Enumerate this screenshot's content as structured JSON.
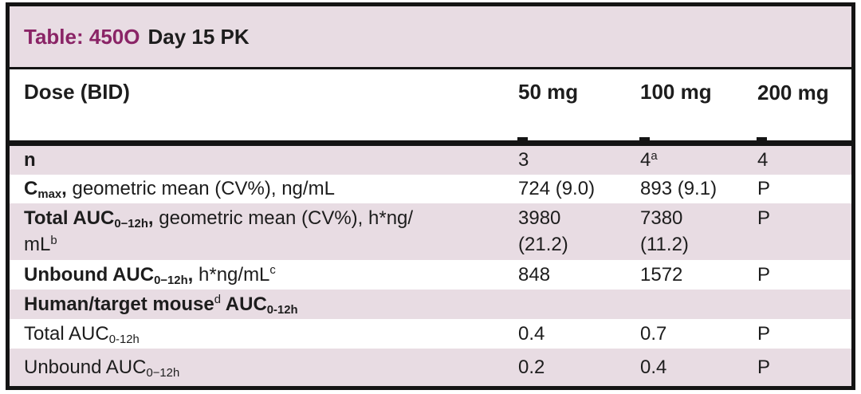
{
  "colors": {
    "band_pink": "#e8dce3",
    "accent_magenta": "#8a2466",
    "text": "#1d1d1d",
    "border": "#141414"
  },
  "title": {
    "tag": "Table: 450O",
    "rest": "Day 15 PK"
  },
  "header": {
    "row_label": "Dose (BID)",
    "columns": [
      "50 mg",
      "100 mg",
      "200 mg"
    ]
  },
  "rows": [
    {
      "name": "n",
      "band": true,
      "label": [
        {
          "t": "n",
          "b": true
        }
      ],
      "values": [
        [
          {
            "t": "3"
          }
        ],
        [
          {
            "t": "4"
          },
          {
            "t": "a",
            "sup": true
          }
        ],
        [
          {
            "t": "4"
          }
        ]
      ]
    },
    {
      "name": "cmax",
      "band": false,
      "label": [
        {
          "t": "C",
          "b": true
        },
        {
          "t": "max",
          "b": true,
          "sub": true
        },
        {
          "t": ",",
          "b": true
        },
        {
          "t": " geometric mean (CV%), ng/mL"
        }
      ],
      "values": [
        [
          {
            "t": "724 (9.0)"
          }
        ],
        [
          {
            "t": "893 (9.1)"
          }
        ],
        [
          {
            "t": "P"
          }
        ]
      ]
    },
    {
      "name": "total-auc-geomean",
      "band": true,
      "tall": true,
      "label": [
        {
          "t": "Total AUC",
          "b": true
        },
        {
          "t": "0−12h",
          "b": true,
          "sub": true
        },
        {
          "t": ",",
          "b": true
        },
        {
          "t": " geometric mean (CV%), h*ng/"
        },
        {
          "t": "mL",
          "br": true
        },
        {
          "t": "b",
          "sup": true
        }
      ],
      "values": [
        [
          {
            "t": "3980"
          },
          {
            "t": "(21.2)",
            "br": true
          }
        ],
        [
          {
            "t": "7380"
          },
          {
            "t": "(11.2)",
            "br": true
          }
        ],
        [
          {
            "t": "P"
          }
        ]
      ]
    },
    {
      "name": "unbound-auc",
      "band": false,
      "label": [
        {
          "t": "Unbound AUC",
          "b": true
        },
        {
          "t": "0−12h",
          "b": true,
          "sub": true
        },
        {
          "t": ",",
          "b": true
        },
        {
          "t": " h*ng/mL"
        },
        {
          "t": "c",
          "sup": true
        }
      ],
      "values": [
        [
          {
            "t": "848"
          }
        ],
        [
          {
            "t": "1572"
          }
        ],
        [
          {
            "t": "P"
          }
        ]
      ]
    },
    {
      "name": "human-target-mouse-section",
      "band": true,
      "label": [
        {
          "t": "Human/target mouse",
          "b": true
        },
        {
          "t": "d",
          "sup": true
        },
        {
          "t": " AUC",
          "b": true
        },
        {
          "t": "0-12h",
          "b": true,
          "sub": true
        }
      ],
      "values": [
        [],
        [],
        []
      ]
    },
    {
      "name": "ratio-total-auc",
      "band": false,
      "label": [
        {
          "t": "Total AUC"
        },
        {
          "t": "0-12h",
          "sub": true
        }
      ],
      "values": [
        [
          {
            "t": "0.4"
          }
        ],
        [
          {
            "t": "0.7"
          }
        ],
        [
          {
            "t": "P"
          }
        ]
      ]
    },
    {
      "name": "ratio-unbound-auc",
      "band": true,
      "label": [
        {
          "t": "Unbound AUC"
        },
        {
          "t": "0−12h",
          "sub": true
        }
      ],
      "values": [
        [
          {
            "t": "0.2"
          }
        ],
        [
          {
            "t": "0.4"
          }
        ],
        [
          {
            "t": "P"
          }
        ]
      ]
    }
  ]
}
